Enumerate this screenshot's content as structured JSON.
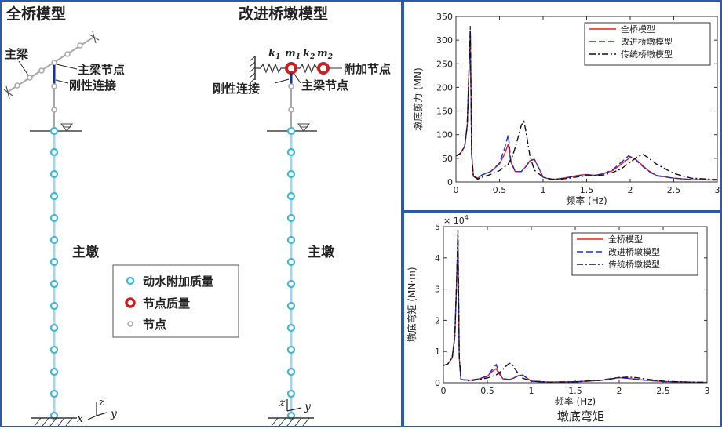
{
  "left": {
    "title_full": "全桥模型",
    "title_improved": "改进桥墩模型",
    "label_main_beam": "主梁",
    "label_beam_node": "主梁节点",
    "label_rigid_full": "刚性连接",
    "label_rigid_improved": "刚性连接",
    "label_beam_node_improved": "主梁节点",
    "label_added_node": "附加节点",
    "label_pier_full": "主墩",
    "label_pier_improved": "主墩",
    "spring_k1": "k",
    "spring_k1_sub": "1",
    "spring_k2": "k",
    "spring_k2_sub": "2",
    "mass_m1": "m",
    "mass_m1_sub": "1",
    "mass_m2": "m",
    "mass_m2_sub": "2",
    "axis_x": "x",
    "axis_y": "y",
    "axis_z": "z",
    "axis2_y": "y",
    "axis2_z": "z",
    "legend": {
      "hydro_mass": "动水附加质量",
      "node_mass": "节点质量",
      "node": "节点"
    },
    "colors": {
      "hydro": "#3cb8d0",
      "node_mass": "#cc1f1f",
      "node": "#a8a8a8",
      "rigid": "#1530a0"
    }
  },
  "chart_data": [
    {
      "type": "line",
      "title": "",
      "xlabel": "频率 (Hz)",
      "ylabel": "墩底剪力 (MN)",
      "xlim": [
        0,
        3
      ],
      "ylim": [
        0,
        350
      ],
      "xticks": [
        "0",
        "0.5",
        "1",
        "1.5",
        "2",
        "2.5",
        "3"
      ],
      "yticks": [
        "0",
        "50",
        "100",
        "150",
        "200",
        "250",
        "300",
        "350"
      ],
      "legend_position": "top-right",
      "series": [
        {
          "name": "全桥模型",
          "color": "#e02020",
          "dash": "solid",
          "x": [
            0,
            0.05,
            0.1,
            0.13,
            0.15,
            0.165,
            0.18,
            0.2,
            0.25,
            0.3,
            0.4,
            0.5,
            0.56,
            0.6,
            0.63,
            0.68,
            0.75,
            0.8,
            0.85,
            0.9,
            0.95,
            1.0,
            1.1,
            1.2,
            1.3,
            1.4,
            1.5,
            1.6,
            1.7,
            1.8,
            1.9,
            2.0,
            2.05,
            2.1,
            2.2,
            2.3,
            2.5,
            2.7,
            3.0
          ],
          "y": [
            55,
            60,
            75,
            120,
            240,
            320,
            60,
            12,
            8,
            15,
            22,
            38,
            60,
            80,
            42,
            22,
            22,
            32,
            45,
            48,
            30,
            10,
            5,
            7,
            10,
            14,
            16,
            14,
            18,
            24,
            38,
            52,
            50,
            42,
            25,
            14,
            8,
            5,
            4
          ]
        },
        {
          "name": "改进桥墩模型",
          "color": "#1c2fc8",
          "dash": "8,4",
          "x": [
            0,
            0.05,
            0.1,
            0.13,
            0.15,
            0.165,
            0.18,
            0.2,
            0.25,
            0.3,
            0.4,
            0.5,
            0.56,
            0.6,
            0.63,
            0.68,
            0.75,
            0.8,
            0.85,
            0.9,
            0.95,
            1.0,
            1.1,
            1.2,
            1.3,
            1.4,
            1.5,
            1.6,
            1.7,
            1.8,
            1.9,
            1.98,
            2.05,
            2.1,
            2.2,
            2.3,
            2.5,
            2.7,
            3.0
          ],
          "y": [
            55,
            60,
            75,
            120,
            240,
            330,
            60,
            12,
            8,
            15,
            22,
            40,
            72,
            100,
            45,
            22,
            22,
            32,
            45,
            48,
            30,
            10,
            5,
            7,
            10,
            13,
            15,
            14,
            18,
            26,
            42,
            55,
            50,
            40,
            24,
            13,
            8,
            5,
            4
          ]
        },
        {
          "name": "传统桥墩模型",
          "color": "#111111",
          "dash": "8,3,2,3",
          "x": [
            0,
            0.05,
            0.1,
            0.13,
            0.15,
            0.165,
            0.18,
            0.2,
            0.25,
            0.3,
            0.4,
            0.5,
            0.6,
            0.65,
            0.7,
            0.75,
            0.78,
            0.8,
            0.85,
            0.9,
            1.0,
            1.1,
            1.2,
            1.3,
            1.4,
            1.5,
            1.6,
            1.7,
            1.8,
            1.9,
            2.0,
            2.1,
            2.15,
            2.2,
            2.3,
            2.5,
            2.7,
            3.0
          ],
          "y": [
            55,
            60,
            75,
            120,
            240,
            320,
            60,
            12,
            6,
            10,
            16,
            24,
            38,
            55,
            85,
            120,
            128,
            110,
            55,
            25,
            10,
            6,
            6,
            8,
            11,
            13,
            14,
            15,
            20,
            28,
            42,
            55,
            58,
            52,
            38,
            18,
            8,
            5
          ]
        }
      ]
    },
    {
      "type": "line",
      "title": "",
      "xlabel": "频率 (Hz)",
      "ylabel": "墩底弯矩 (MN·m)",
      "caption": "墩底弯矩",
      "scale_note": "× 10",
      "scale_exp": "4",
      "xlim": [
        0,
        3
      ],
      "ylim": [
        0,
        5
      ],
      "xticks": [
        "0",
        "0.5",
        "1",
        "1.5",
        "2",
        "2.5",
        "3"
      ],
      "yticks": [
        "0",
        "1",
        "2",
        "3",
        "4",
        "5"
      ],
      "legend_position": "top-right",
      "series": [
        {
          "name": "全桥模型",
          "color": "#e02020",
          "dash": "solid",
          "x": [
            0,
            0.05,
            0.1,
            0.13,
            0.15,
            0.165,
            0.18,
            0.2,
            0.3,
            0.4,
            0.5,
            0.55,
            0.6,
            0.63,
            0.68,
            0.75,
            0.8,
            0.85,
            0.9,
            0.95,
            1.0,
            1.2,
            1.5,
            1.8,
            1.9,
            2.0,
            2.1,
            2.3,
            2.5,
            2.8,
            3.0
          ],
          "y": [
            0.55,
            0.6,
            0.8,
            1.5,
            3.2,
            4.6,
            0.8,
            0.1,
            0.08,
            0.12,
            0.2,
            0.35,
            0.45,
            0.3,
            0.12,
            0.1,
            0.15,
            0.22,
            0.25,
            0.15,
            0.05,
            0.02,
            0.03,
            0.08,
            0.12,
            0.16,
            0.14,
            0.08,
            0.04,
            0.02,
            0.01
          ]
        },
        {
          "name": "改进桥墩模型",
          "color": "#1c2fc8",
          "dash": "8,4",
          "x": [
            0,
            0.05,
            0.1,
            0.13,
            0.15,
            0.165,
            0.18,
            0.2,
            0.3,
            0.4,
            0.5,
            0.55,
            0.6,
            0.63,
            0.68,
            0.75,
            0.8,
            0.85,
            0.9,
            0.95,
            1.0,
            1.2,
            1.5,
            1.8,
            1.9,
            2.0,
            2.1,
            2.3,
            2.5,
            2.8,
            3.0
          ],
          "y": [
            0.55,
            0.6,
            0.8,
            1.5,
            3.2,
            4.75,
            0.8,
            0.1,
            0.08,
            0.12,
            0.22,
            0.4,
            0.58,
            0.35,
            0.13,
            0.1,
            0.15,
            0.22,
            0.25,
            0.15,
            0.05,
            0.02,
            0.03,
            0.08,
            0.13,
            0.17,
            0.14,
            0.08,
            0.04,
            0.02,
            0.01
          ]
        },
        {
          "name": "传统桥墩模型",
          "color": "#111111",
          "dash": "8,3,2,3",
          "x": [
            0,
            0.05,
            0.1,
            0.13,
            0.15,
            0.165,
            0.18,
            0.2,
            0.3,
            0.4,
            0.5,
            0.6,
            0.65,
            0.7,
            0.75,
            0.78,
            0.8,
            0.85,
            0.9,
            1.0,
            1.2,
            1.5,
            1.8,
            1.9,
            2.0,
            2.1,
            2.2,
            2.3,
            2.5,
            2.8,
            3.0
          ],
          "y": [
            0.55,
            0.6,
            0.8,
            1.5,
            3.2,
            4.9,
            0.8,
            0.1,
            0.06,
            0.1,
            0.15,
            0.25,
            0.35,
            0.5,
            0.62,
            0.6,
            0.5,
            0.3,
            0.15,
            0.05,
            0.02,
            0.03,
            0.08,
            0.12,
            0.16,
            0.18,
            0.16,
            0.12,
            0.05,
            0.02,
            0.01
          ]
        }
      ]
    }
  ]
}
